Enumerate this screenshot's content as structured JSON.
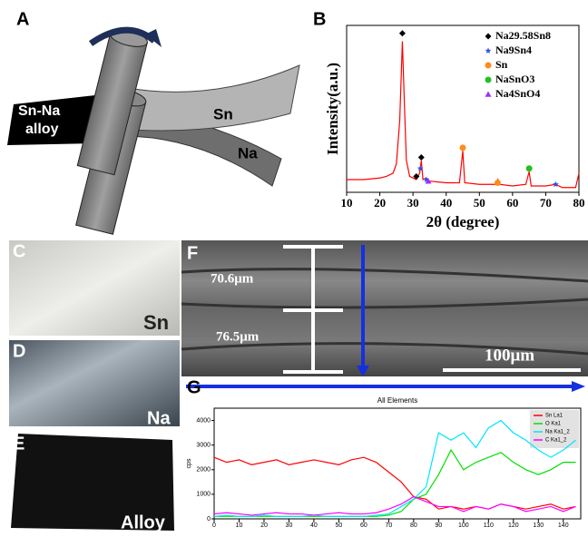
{
  "panel_labels": {
    "a": "A",
    "b": "B",
    "c": "C",
    "d": "D",
    "e": "E",
    "f": "F",
    "g": "G"
  },
  "schematic": {
    "alloy": [
      "Sn-Na",
      "alloy"
    ],
    "sn": "Sn",
    "na": "Na"
  },
  "photos": {
    "sn": "Sn",
    "na": "Na",
    "alloy": "Alloy"
  },
  "sem": {
    "upper": "70.6μm",
    "lower": "76.5μm",
    "scale": "100μm"
  },
  "chart_data": [
    {
      "type": "line",
      "x_label": "2θ (degree)",
      "y_label": "Intensity(a.u.)",
      "color": "#ff0000",
      "x": [
        10,
        15,
        20,
        22,
        24,
        25,
        26,
        26.8,
        27.5,
        28,
        29,
        30,
        31,
        32,
        32.5,
        33,
        34,
        35,
        40,
        44,
        45,
        45.6,
        50,
        55,
        55.6,
        56,
        60,
        64,
        65,
        65.6,
        70,
        73,
        75,
        79,
        80
      ],
      "values": [
        8,
        8,
        9,
        10,
        12,
        18,
        45,
        95,
        50,
        20,
        10,
        9,
        8,
        12,
        20,
        8,
        9,
        7,
        6,
        6,
        26,
        6,
        5,
        5,
        8,
        5,
        4,
        5,
        13,
        4,
        4,
        5,
        3,
        3,
        12
      ],
      "xlim": [
        10,
        80
      ],
      "xticks": [
        10,
        20,
        30,
        40,
        50,
        60,
        70,
        80
      ],
      "ylim": [
        0,
        105
      ],
      "series": [
        {
          "name": "Na29.58Sn8",
          "color": "#000000",
          "marker": "diamond",
          "x": [
            26.8,
            31,
            32.5
          ],
          "values": [
            100,
            10,
            22
          ]
        },
        {
          "name": "Na9Sn4",
          "color": "#3050e0",
          "marker": "star",
          "x": [
            32.2,
            34,
            73
          ],
          "values": [
            15,
            8,
            5
          ]
        },
        {
          "name": "Sn",
          "color": "#ff8c1a",
          "marker": "circle",
          "x": [
            45,
            55.5
          ],
          "values": [
            28,
            6
          ]
        },
        {
          "name": "NaSnO3",
          "color": "#22c022",
          "marker": "circle",
          "x": [
            65
          ],
          "values": [
            15
          ]
        },
        {
          "name": "Na4SnO4",
          "color": "#9b30ff",
          "marker": "triangle",
          "x": [
            34.6
          ],
          "values": [
            7
          ]
        }
      ]
    },
    {
      "type": "line",
      "title": "All Elements",
      "y_label": "cps",
      "x": [
        0,
        5,
        10,
        15,
        20,
        25,
        30,
        35,
        40,
        45,
        50,
        55,
        60,
        65,
        70,
        75,
        80,
        85,
        90,
        95,
        100,
        105,
        110,
        115,
        120,
        125,
        130,
        135,
        140,
        145
      ],
      "xlim": [
        0,
        147
      ],
      "xticks": [
        0,
        10,
        20,
        30,
        40,
        50,
        60,
        70,
        80,
        90,
        100,
        110,
        120,
        130,
        140
      ],
      "ylim": [
        0,
        4500
      ],
      "yticks": [
        0,
        1000,
        2000,
        3000,
        4000
      ],
      "legend": "upper right",
      "series": [
        {
          "name": "Sn La1",
          "color": "#ff0000",
          "values": [
            2500,
            2300,
            2400,
            2200,
            2300,
            2400,
            2200,
            2300,
            2400,
            2300,
            2200,
            2400,
            2500,
            2300,
            1900,
            1500,
            900,
            800,
            400,
            500,
            400,
            500,
            400,
            600,
            500,
            400,
            500,
            600,
            400,
            500
          ]
        },
        {
          "name": "O Ka1",
          "color": "#00e000",
          "values": [
            100,
            100,
            100,
            100,
            100,
            100,
            100,
            100,
            100,
            100,
            100,
            100,
            100,
            100,
            150,
            300,
            800,
            1000,
            1800,
            2800,
            2000,
            2300,
            2500,
            2700,
            2300,
            2000,
            1800,
            2000,
            2300,
            2300
          ]
        },
        {
          "name": "Na Ka1_2",
          "color": "#00e5ff",
          "values": [
            100,
            150,
            100,
            100,
            150,
            100,
            100,
            100,
            150,
            100,
            100,
            100,
            100,
            150,
            200,
            500,
            800,
            1300,
            3500,
            3200,
            3500,
            2900,
            3700,
            4000,
            3500,
            3200,
            2800,
            2500,
            2800,
            3200
          ]
        },
        {
          "name": "C Ka1_2",
          "color": "#ff00ff",
          "values": [
            200,
            250,
            200,
            150,
            200,
            250,
            200,
            200,
            150,
            200,
            250,
            200,
            200,
            250,
            400,
            600,
            900,
            700,
            500,
            500,
            300,
            500,
            400,
            600,
            500,
            300,
            400,
            500,
            300,
            500
          ]
        }
      ]
    }
  ]
}
